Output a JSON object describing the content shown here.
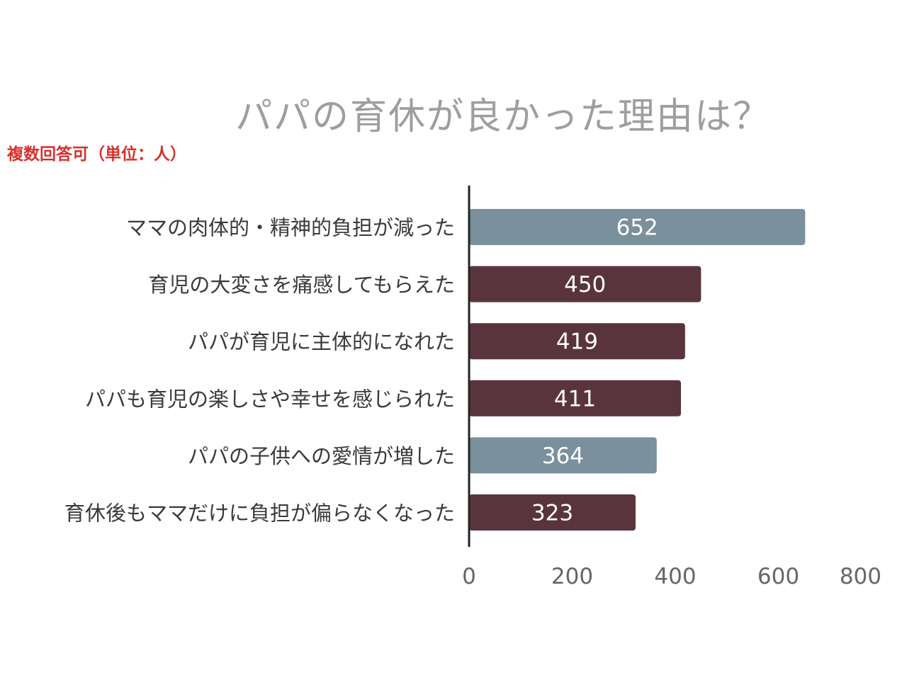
{
  "chart_data": {
    "type": "bar",
    "orientation": "horizontal",
    "title": "パパの育休が良かった理由は？",
    "note": "複数回答可（単位：人）",
    "categories": [
      "ママの肉体的・精神的負担が減った",
      "育児の大変さを痛感してもらえた",
      "パパが育児に主体的になれた",
      "パパも育児の楽しさや幸せを感じられた",
      "パパの子供への愛情が増した",
      "育休後もママだけに負担が偏らなくなった"
    ],
    "values": [
      652,
      450,
      419,
      411,
      364,
      323
    ],
    "value_labels": [
      "652",
      "450",
      "419",
      "411",
      "364",
      "323"
    ],
    "bar_colors": [
      "#7a909c",
      "#5a343d",
      "#5a343d",
      "#5a343d",
      "#7a909c",
      "#5a343d"
    ],
    "xlim": [
      0,
      800
    ],
    "xticks": [
      "0",
      "200",
      "400",
      "600",
      "800"
    ],
    "grid": false,
    "legend": "none"
  }
}
